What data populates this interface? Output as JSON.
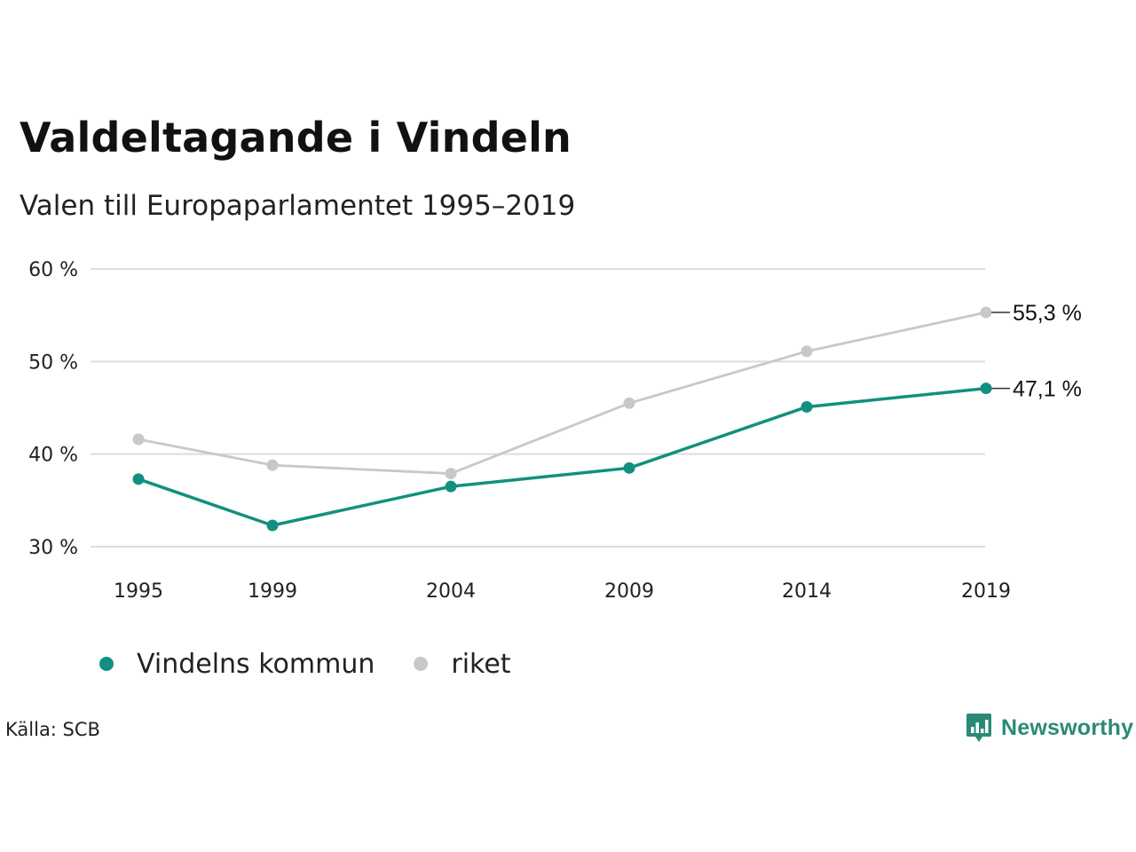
{
  "header": {
    "title": "Valdeltagande i Vindeln",
    "subtitle": "Valen till Europaparlamentet 1995–2019"
  },
  "chart_data": {
    "type": "line",
    "x": [
      "1995",
      "1999",
      "2004",
      "2009",
      "2014",
      "2019"
    ],
    "yticks": [
      "30 %",
      "40 %",
      "50 %",
      "60 %"
    ],
    "ylim": [
      30,
      60
    ],
    "grid": true,
    "legend_position": "bottom-left",
    "series": [
      {
        "name": "Vindelns kommun",
        "color": "#12907f",
        "values": [
          37.3,
          32.3,
          36.5,
          38.5,
          45.1,
          47.1
        ],
        "end_label": "47,1 %"
      },
      {
        "name": "riket",
        "color": "#c8c8c8",
        "values": [
          41.6,
          38.8,
          37.9,
          45.5,
          51.1,
          55.3
        ],
        "end_label": "55,3 %"
      }
    ]
  },
  "footer": {
    "source": "Källa: SCB",
    "logo_text": "Newsworthy",
    "logo_icon": "bar-chart-speech-bubble-icon"
  }
}
